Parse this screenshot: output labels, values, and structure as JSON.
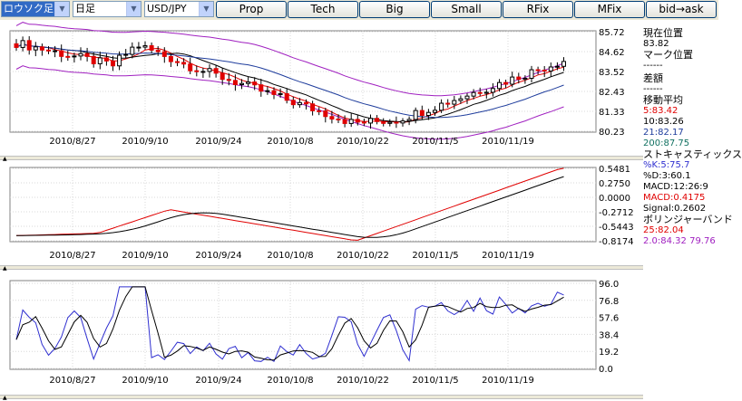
{
  "toolbar": {
    "chart_type": "ロウソク足",
    "period": "日足",
    "pair": "USD/JPY",
    "buttons": [
      "Prop",
      "Tech",
      "Big",
      "Small",
      "RFix",
      "MFix",
      "bid→ask"
    ]
  },
  "date_labels": [
    "2010/8/27",
    "2010/9/10",
    "2010/9/24",
    "2010/10/8",
    "2010/10/22",
    "2010/11/5",
    "2010/11/19"
  ],
  "price_axis": [
    "85.72",
    "84.62",
    "83.52",
    "82.43",
    "81.33",
    "80.23"
  ],
  "macd_axis": [
    "0.5481",
    "0.2750",
    "0.0000",
    "-0.2712",
    "-0.5443",
    "-0.8174"
  ],
  "stoch_axis": [
    "96.0",
    "76.8",
    "57.6",
    "38.4",
    "19.2",
    "0.0"
  ],
  "info": {
    "current_label": "現在位置",
    "current_price": "83.82",
    "mark_label": "マーク位置",
    "mark_value": "------",
    "diff_label": "差額",
    "diff_value": "------",
    "ma_label": "移動平均",
    "ma5": "5:83.42",
    "ma10": "10:83.26",
    "ma21": "21:82.17",
    "ma200": "200:87.75",
    "stoch_label": "ストキャスティックス",
    "stoch_k": "%K:5:75.7",
    "stoch_d": "%D:3:60.1",
    "macd_label": "MACD:12:26:9",
    "macd_value": "MACD:0.4175",
    "signal_value": "Signal:0.2602",
    "bb_label": "ボリンジャーバンド",
    "bb_25": "25:82.04",
    "bb_20": "2.0:84.32  79.76"
  },
  "colors": {
    "up": "#000000",
    "down": "#e00000",
    "ma5": "#e00000",
    "ma10": "#000000",
    "ma21": "#1e3c9c",
    "bb": "#a020c0",
    "macd": "#000000",
    "signal": "#e00000",
    "stoch_k": "#3030d0",
    "stoch_d": "#000000"
  }
}
